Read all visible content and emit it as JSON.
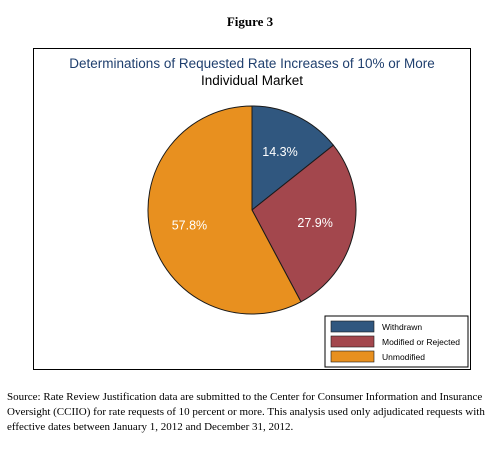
{
  "figure_label": "Figure 3",
  "chart_data": {
    "type": "pie",
    "title": "Determinations of Requested Rate Increases of 10% or More",
    "subtitle": "Individual Market",
    "slices": [
      {
        "name": "Withdrawn",
        "value": 14.3,
        "label": "14.3%",
        "color": "#30577f"
      },
      {
        "name": "Modified or Rejected",
        "value": 27.9,
        "label": "27.9%",
        "color": "#a3474d"
      },
      {
        "name": "Unmodified",
        "value": 57.8,
        "label": "57.8%",
        "color": "#e8901f"
      }
    ],
    "legend_position": "bottom-right"
  },
  "source_note": "Source: Rate Review Justification data are submitted to the Center for Consumer Information and Insurance Oversight (CCIIO) for rate requests of 10 percent or more. This analysis used only adjudicated requests with effective dates between January 1, 2012 and December 31, 2012."
}
